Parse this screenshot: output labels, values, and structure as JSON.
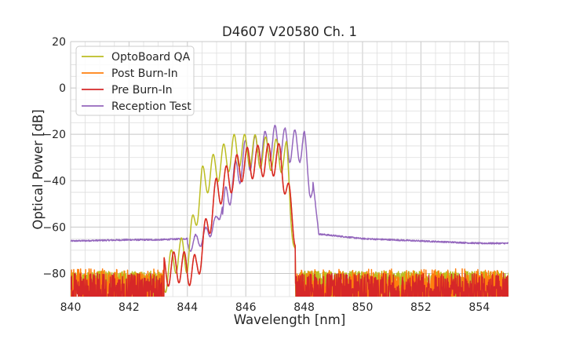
{
  "chart_data": {
    "type": "line",
    "title": "D4607 V20580 Ch. 1",
    "xlabel": "Wavelength [nm]",
    "ylabel": "Optical Power [dB]",
    "xlim": [
      840,
      855
    ],
    "ylim": [
      -90,
      20
    ],
    "xticks": [
      840,
      842,
      844,
      846,
      848,
      850,
      852,
      854
    ],
    "yticks": [
      20,
      0,
      -20,
      -40,
      -60,
      -80
    ],
    "minor_grid": true,
    "grid": true,
    "legend_position": "top-left",
    "series": [
      {
        "name": "OptoBoard QA",
        "color": "#bcbd22",
        "noise_floor": [
          -83,
          -79
        ],
        "peaks": [
          [
            843.2,
            -67
          ],
          [
            843.7,
            -64
          ],
          [
            844.2,
            -55
          ],
          [
            844.55,
            -34
          ],
          [
            844.95,
            -27
          ],
          [
            845.25,
            -24
          ],
          [
            845.6,
            -20
          ],
          [
            845.95,
            -21
          ],
          [
            846.25,
            -20
          ],
          [
            846.6,
            -21
          ],
          [
            847.0,
            -22
          ],
          [
            847.35,
            -23
          ],
          [
            847.6,
            -48
          ]
        ],
        "dips": [
          [
            844.0,
            -66
          ],
          [
            844.4,
            -62
          ],
          [
            844.75,
            -54
          ],
          [
            845.1,
            -50
          ],
          [
            845.45,
            -44
          ],
          [
            845.8,
            -48
          ],
          [
            846.1,
            -46
          ],
          [
            846.45,
            -44
          ],
          [
            846.8,
            -46
          ],
          [
            847.2,
            -43
          ],
          [
            847.5,
            -52
          ]
        ],
        "x": [
          840,
          843.0,
          843.7,
          844.0,
          844.5,
          845.0,
          845.6,
          846.25,
          847.0,
          847.4,
          847.7,
          848.0,
          855
        ],
        "y": [
          -83,
          -80,
          -64,
          -66,
          -34,
          -27,
          -20,
          -20,
          -22,
          -23,
          -66,
          -80,
          -82
        ]
      },
      {
        "name": "Post Burn-In",
        "color": "#ff7f0e",
        "noise_floor": [
          -90,
          -78
        ],
        "x": [
          840,
          843.7,
          844.3,
          845.0,
          845.9,
          846.7,
          847.2,
          847.7,
          848.0,
          855
        ],
        "y": [
          -85,
          -70,
          -72,
          -38,
          -26,
          -24,
          -24,
          -55,
          -78,
          -84
        ]
      },
      {
        "name": "Pre Burn-In",
        "color": "#d62728",
        "noise_floor": [
          -90,
          -80
        ],
        "x": [
          840,
          843.7,
          844.3,
          845.0,
          845.9,
          846.7,
          847.2,
          847.7,
          848.0,
          855
        ],
        "y": [
          -86,
          -70,
          -72,
          -38,
          -26,
          -24,
          -24,
          -55,
          -80,
          -86
        ]
      },
      {
        "name": "Reception Test",
        "color": "#9467bd",
        "x": [
          840,
          842,
          843,
          844,
          844.5,
          845.0,
          845.5,
          846.0,
          846.5,
          847.0,
          847.5,
          848.0,
          848.3,
          848.5,
          850,
          852,
          854,
          855
        ],
        "y": [
          -66,
          -65.5,
          -65.5,
          -65,
          -62,
          -55,
          -35,
          -22,
          -20,
          -16,
          -18,
          -18,
          -40,
          -63,
          -65,
          -66,
          -67,
          -67
        ]
      }
    ]
  }
}
